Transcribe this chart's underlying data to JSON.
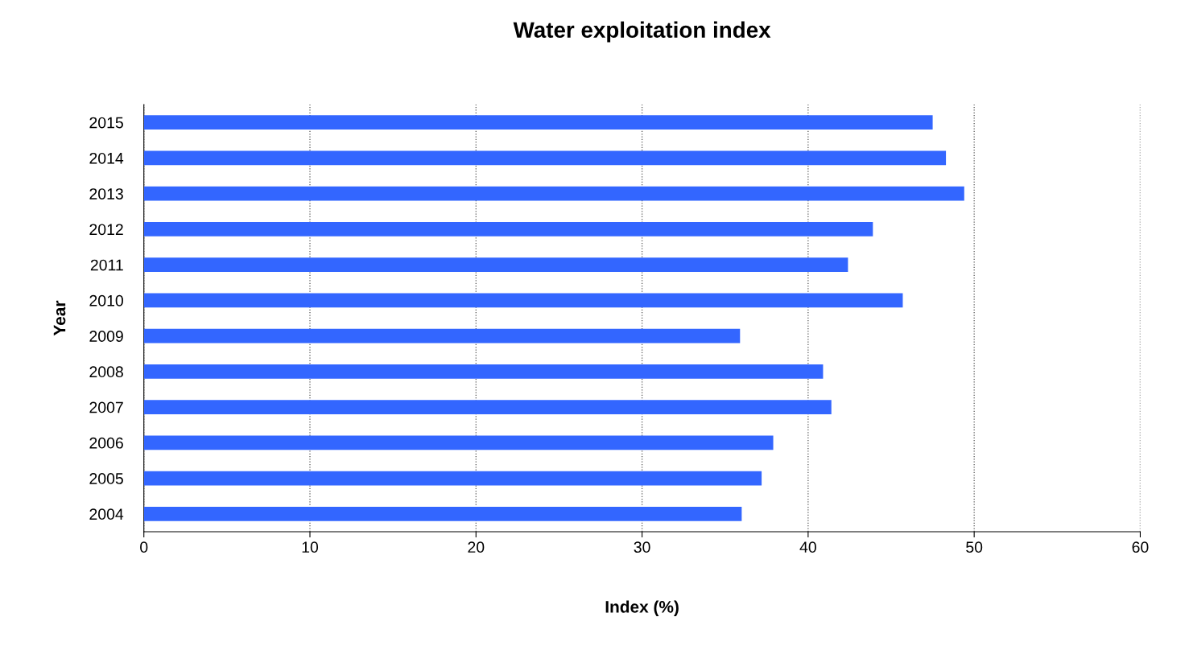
{
  "chart_data": {
    "type": "bar",
    "orientation": "horizontal",
    "title": "Water exploitation index",
    "xlabel": "Index (%)",
    "ylabel": "Year",
    "categories": [
      "2015",
      "2014",
      "2013",
      "2012",
      "2011",
      "2010",
      "2009",
      "2008",
      "2007",
      "2006",
      "2005",
      "2004"
    ],
    "values": [
      47.5,
      48.3,
      49.4,
      43.9,
      42.4,
      45.7,
      35.9,
      40.9,
      41.4,
      37.9,
      37.2,
      36.0
    ],
    "color": "#3366ff",
    "xlim": [
      0,
      60
    ],
    "xticks": [
      0,
      10,
      20,
      30,
      40,
      50,
      60
    ],
    "grid": "x",
    "legend": false
  }
}
